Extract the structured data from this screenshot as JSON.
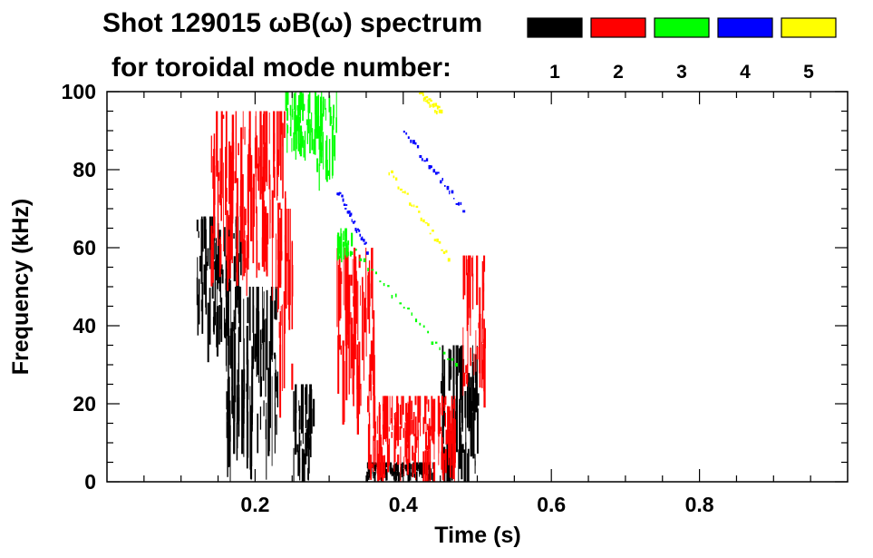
{
  "chart_data": {
    "type": "heatmap",
    "title_line1": "Shot 129015 ωB(ω) spectrum",
    "title_line2": "for toroidal mode number:",
    "xlabel": "Time (s)",
    "ylabel": "Frequency (kHz)",
    "xlim": [
      0.0,
      1.0
    ],
    "ylim": [
      0,
      100
    ],
    "xticks": [
      0.2,
      0.4,
      0.6,
      0.8
    ],
    "xtick_labels": [
      "0.2",
      "0.4",
      "0.6",
      "0.8"
    ],
    "yticks": [
      0,
      20,
      40,
      60,
      80,
      100
    ],
    "ytick_labels": [
      "0",
      "20",
      "40",
      "60",
      "80",
      "100"
    ],
    "legend_position": "top-right",
    "legend": [
      {
        "label": "1",
        "color": "#000000"
      },
      {
        "label": "2",
        "color": "#ff0000"
      },
      {
        "label": "3",
        "color": "#00ff00"
      },
      {
        "label": "4",
        "color": "#0000ff"
      },
      {
        "label": "5",
        "color": "#ffff00"
      }
    ],
    "series": [
      {
        "mode": "1",
        "color": "#000000",
        "regions": [
          {
            "t": [
              0.12,
              0.18
            ],
            "f": [
              38,
              68
            ]
          },
          {
            "t": [
              0.16,
              0.23
            ],
            "f": [
              8,
              50
            ]
          },
          {
            "t": [
              0.25,
              0.28
            ],
            "f": [
              2,
              25
            ]
          },
          {
            "t": [
              0.45,
              0.5
            ],
            "f": [
              2,
              35
            ]
          },
          {
            "t": [
              0.35,
              0.44
            ],
            "f": [
              1,
              5
            ]
          }
        ]
      },
      {
        "mode": "2",
        "color": "#ff0000",
        "regions": [
          {
            "t": [
              0.14,
              0.24
            ],
            "f": [
              55,
              95
            ]
          },
          {
            "t": [
              0.23,
              0.25
            ],
            "f": [
              25,
              70
            ]
          },
          {
            "t": [
              0.31,
              0.36
            ],
            "f": [
              20,
              60
            ]
          },
          {
            "t": [
              0.48,
              0.51
            ],
            "f": [
              25,
              58
            ]
          },
          {
            "t": [
              0.35,
              0.47
            ],
            "f": [
              2,
              22
            ]
          }
        ]
      },
      {
        "mode": "3",
        "color": "#00ff00",
        "regions": [
          {
            "t": [
              0.28,
              0.31
            ],
            "f": [
              78,
              100
            ]
          },
          {
            "t": [
              0.31,
              0.33
            ],
            "f": [
              58,
              65
            ]
          },
          {
            "t": [
              0.24,
              0.28
            ],
            "f": [
              85,
              100
            ]
          }
        ],
        "tracks": [
          {
            "t": [
              0.33,
              0.47
            ],
            "f": [
              60,
              30
            ]
          }
        ]
      },
      {
        "mode": "4",
        "color": "#0000ff",
        "tracks": [
          {
            "t": [
              0.31,
              0.35
            ],
            "f": [
              75,
              60
            ]
          },
          {
            "t": [
              0.4,
              0.48
            ],
            "f": [
              90,
              70
            ]
          }
        ]
      },
      {
        "mode": "5",
        "color": "#ffff00",
        "tracks": [
          {
            "t": [
              0.38,
              0.46
            ],
            "f": [
              80,
              58
            ]
          },
          {
            "t": [
              0.42,
              0.45
            ],
            "f": [
              100,
              95
            ]
          }
        ]
      }
    ]
  }
}
